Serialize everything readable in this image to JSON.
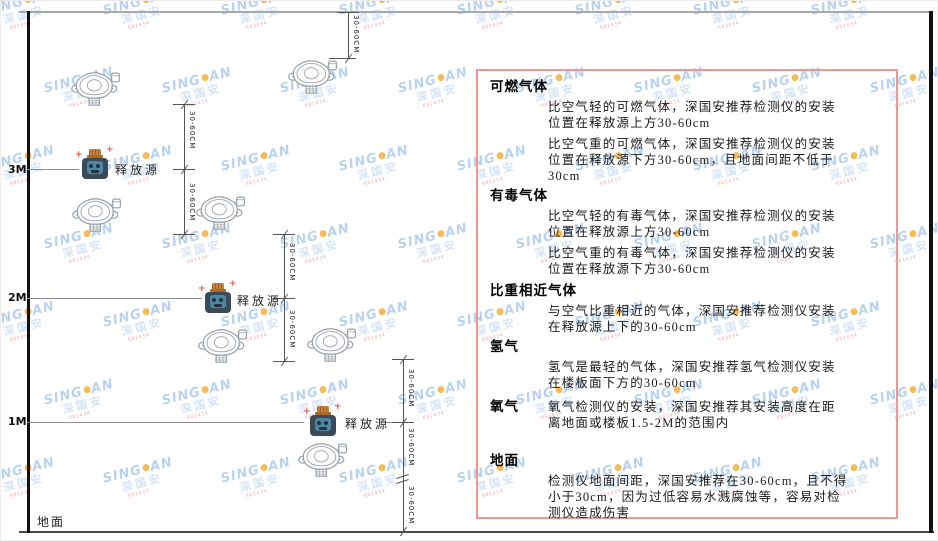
{
  "watermark": {
    "brand_left": "SING",
    "brand_right": "AN",
    "company": "深国安",
    "code": "681434"
  },
  "diagram": {
    "heights": [
      "3M",
      "2M",
      "1M"
    ],
    "release_source_label": "释放源",
    "dimension_label": "30-60CM",
    "ground_label": "地面"
  },
  "panel": {
    "sections": [
      {
        "heading": "可燃气体",
        "paragraphs": [
          "比空气轻的可燃气体，深国安推荐检测仪的安装位置在释放源上方30-60cm",
          "比空气重的可燃气体，深国安推荐检测仪的安装位置在释放源下方30-60cm，且地面间距不低于30cm"
        ]
      },
      {
        "heading": "有毒气体",
        "paragraphs": [
          "比空气轻的有毒气体，深国安推荐检测仪的安装位置在释放源上方30-60cm",
          "比空气重的有毒气体，深国安推荐检测仪的安装位置在释放源下方30-60cm"
        ]
      },
      {
        "heading": "比重相近气体",
        "paragraphs": [
          "与空气比重相近的气体，深国安推荐检测仪安装在释放源上下的30-60cm"
        ]
      },
      {
        "heading": "氢气",
        "paragraphs": [
          "氢气是最轻的气体，深国安推荐氢气检测仪安装在楼板面下方的30-60cm"
        ]
      },
      {
        "heading": "氧气",
        "paragraphs": [
          "氧气检测仪的安装，深国安推荐其安装高度在距离地面或楼板1.5-2M的范围内"
        ]
      },
      {
        "heading": "地面",
        "paragraphs": [
          "检测仪地面间距，深国安推荐在30-60cm，且不得小于30cm，因为过低容易水溅腐蚀等，容易对检测仪造成伤害"
        ]
      }
    ]
  },
  "colors": {
    "panel_border": "#f29490",
    "watermark_blue": "#adcbec",
    "watermark_dot_orange": "#f2b13c",
    "source_body": "#3c4a58",
    "source_cap": "#c8823a",
    "source_face": "#4d87a3",
    "spark_red": "#e2554a",
    "detector_line": "#9aa2aa",
    "dimension_line": "#555555",
    "wall_black": "#111111",
    "ceiling_gray": "#a8a8a8"
  }
}
